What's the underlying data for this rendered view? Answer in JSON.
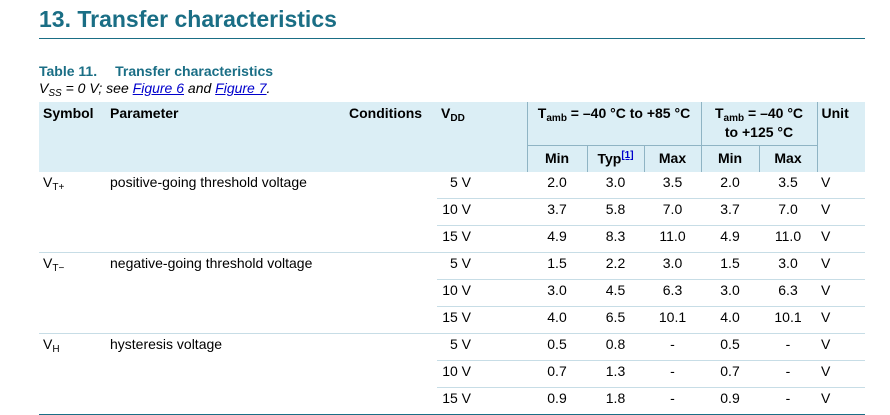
{
  "section": {
    "title": "13. Transfer characteristics"
  },
  "table": {
    "caption_label": "Table 11.",
    "caption_title": "Transfer characteristics",
    "subtitle_pre": "V",
    "subtitle_sub": "SS",
    "subtitle_mid": " = 0 V; see ",
    "link1": "Figure 6",
    "subtitle_and": " and ",
    "link2": "Figure 7",
    "subtitle_end": "."
  },
  "header": {
    "symbol": "Symbol",
    "parameter": "Parameter",
    "conditions": "Conditions",
    "vdd_main": "V",
    "vdd_sub": "DD",
    "grp1_pre": "T",
    "grp1_sub": "amb",
    "grp1_rest": " = –40 °C to +85 °C",
    "grp2_pre": "T",
    "grp2_sub": "amb",
    "grp2_rest": " = –40 °C",
    "grp2_line2": "to +125 °C",
    "unit": "Unit",
    "min": "Min",
    "typ": "Typ",
    "typ_ref": "[1]",
    "max": "Max",
    "min2": "Min",
    "max2": "Max"
  },
  "rows": [
    {
      "sym_main": "V",
      "sym_sub": "T+",
      "param": "positive-going threshold voltage",
      "vdd": "5 V",
      "min": "2.0",
      "typ": "3.0",
      "max": "3.5",
      "min2": "2.0",
      "max2": "3.5",
      "unit": "V"
    },
    {
      "sym_main": "",
      "sym_sub": "",
      "param": "",
      "vdd": "10 V",
      "min": "3.7",
      "typ": "5.8",
      "max": "7.0",
      "min2": "3.7",
      "max2": "7.0",
      "unit": "V"
    },
    {
      "sym_main": "",
      "sym_sub": "",
      "param": "",
      "vdd": "15 V",
      "min": "4.9",
      "typ": "8.3",
      "max": "11.0",
      "min2": "4.9",
      "max2": "11.0",
      "unit": "V"
    },
    {
      "sym_main": "V",
      "sym_sub": "T−",
      "param": "negative-going threshold voltage",
      "vdd": "5 V",
      "min": "1.5",
      "typ": "2.2",
      "max": "3.0",
      "min2": "1.5",
      "max2": "3.0",
      "unit": "V"
    },
    {
      "sym_main": "",
      "sym_sub": "",
      "param": "",
      "vdd": "10 V",
      "min": "3.0",
      "typ": "4.5",
      "max": "6.3",
      "min2": "3.0",
      "max2": "6.3",
      "unit": "V"
    },
    {
      "sym_main": "",
      "sym_sub": "",
      "param": "",
      "vdd": "15 V",
      "min": "4.0",
      "typ": "6.5",
      "max": "10.1",
      "min2": "4.0",
      "max2": "10.1",
      "unit": "V"
    },
    {
      "sym_main": "V",
      "sym_sub": "H",
      "param": "hysteresis voltage",
      "vdd": "5 V",
      "min": "0.5",
      "typ": "0.8",
      "max": "-",
      "min2": "0.5",
      "max2": "-",
      "unit": "V"
    },
    {
      "sym_main": "",
      "sym_sub": "",
      "param": "",
      "vdd": "10 V",
      "min": "0.7",
      "typ": "1.3",
      "max": "-",
      "min2": "0.7",
      "max2": "-",
      "unit": "V"
    },
    {
      "sym_main": "",
      "sym_sub": "",
      "param": "",
      "vdd": "15 V",
      "min": "0.9",
      "typ": "1.8",
      "max": "-",
      "min2": "0.9",
      "max2": "-",
      "unit": "V"
    }
  ]
}
